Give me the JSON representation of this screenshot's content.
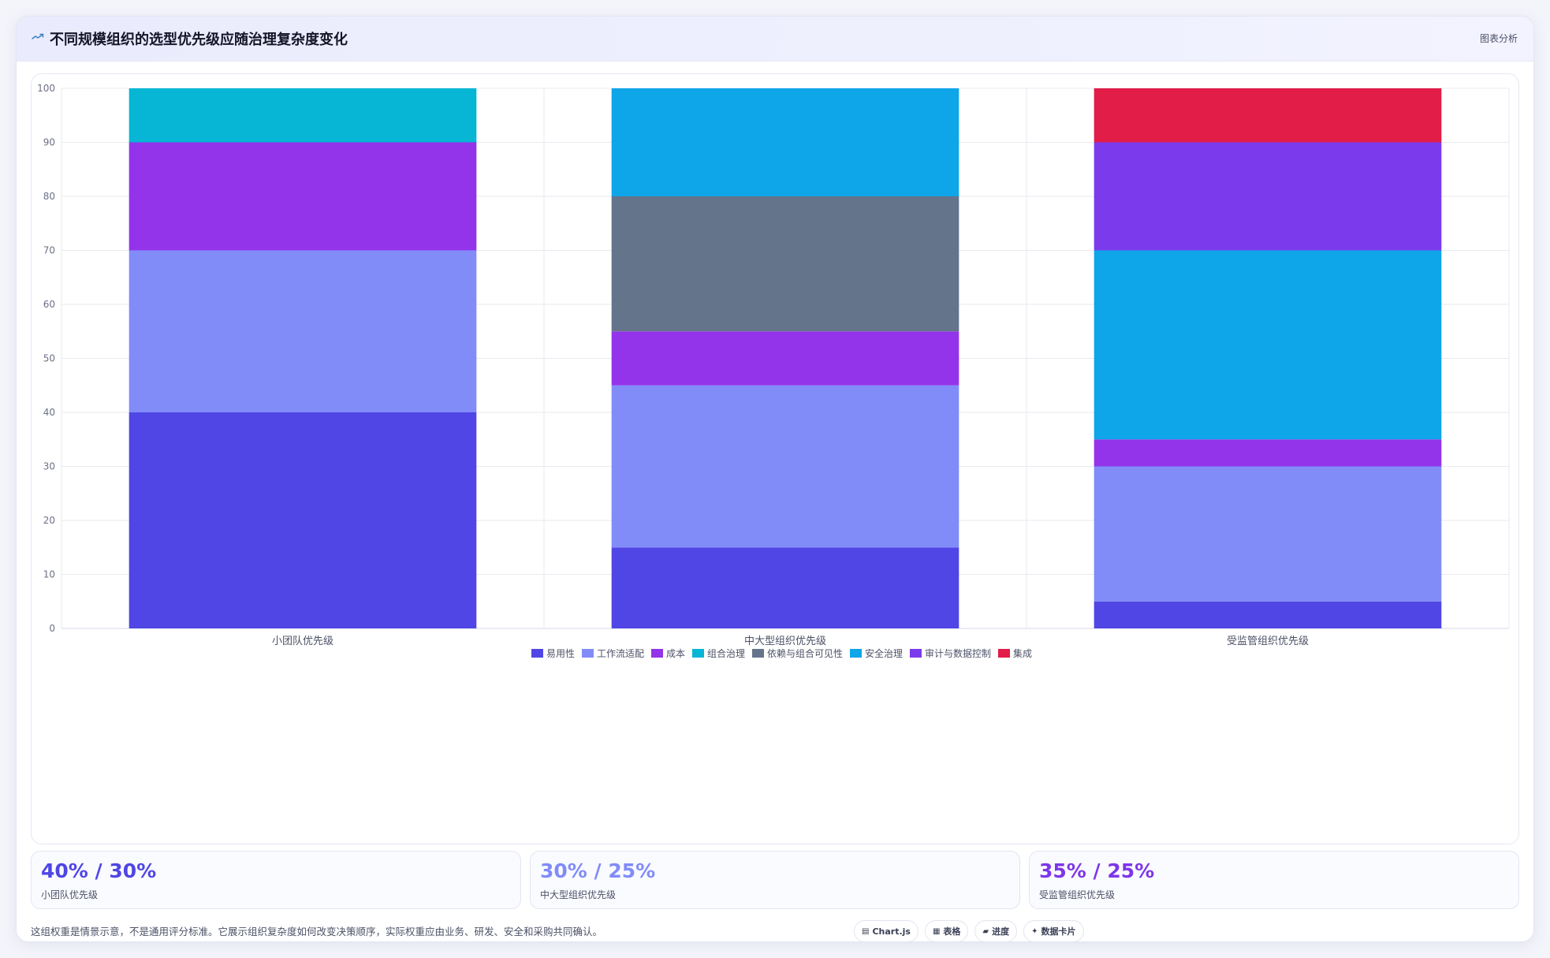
{
  "header": {
    "title": "不同规模组织的选型优先级应随治理复杂度变化",
    "action_label": "图表分析"
  },
  "chart_data": {
    "type": "bar",
    "stacked": true,
    "categories": [
      "小团队优先级",
      "中大型组织优先级",
      "受监管组织优先级"
    ],
    "ylim": [
      0,
      100
    ],
    "yticks": [
      0,
      10,
      20,
      30,
      40,
      50,
      60,
      70,
      80,
      90,
      100
    ],
    "grid": true,
    "legend_position": "bottom",
    "series": [
      {
        "name": "易用性",
        "color": "#4f46e5",
        "values": [
          40,
          15,
          5
        ]
      },
      {
        "name": "工作流适配",
        "color": "#818cf8",
        "values": [
          30,
          30,
          25
        ]
      },
      {
        "name": "成本",
        "color": "#9333ea",
        "values": [
          20,
          10,
          5
        ]
      },
      {
        "name": "组合治理",
        "color": "#06b6d4",
        "values": [
          10,
          0,
          0
        ]
      },
      {
        "name": "依赖与组合可见性",
        "color": "#64748b",
        "values": [
          0,
          25,
          0
        ]
      },
      {
        "name": "安全治理",
        "color": "#0ea5e9",
        "values": [
          0,
          20,
          35
        ]
      },
      {
        "name": "审计与数据控制",
        "color": "#7c3aed",
        "values": [
          0,
          0,
          20
        ]
      },
      {
        "name": "集成",
        "color": "#e11d48",
        "values": [
          0,
          0,
          10
        ]
      }
    ]
  },
  "stats": [
    {
      "value": "40% / 30%",
      "label": "小团队优先级",
      "color": "#4f46e5"
    },
    {
      "value": "30% / 25%",
      "label": "中大型组织优先级",
      "color": "#818cf8"
    },
    {
      "value": "35% / 25%",
      "label": "受监管组织优先级",
      "color": "#7e36e8"
    }
  ],
  "footnote": "这组权重是情景示意，不是通用评分标准。它展示组织复杂度如何改变决策顺序，实际权重应由业务、研发、安全和采购共同确认。",
  "chips": [
    {
      "icon": "▤",
      "label": "Chart.js"
    },
    {
      "icon": "▦",
      "label": "表格"
    },
    {
      "icon": "▰",
      "label": "进度"
    },
    {
      "icon": "✦",
      "label": "数据卡片"
    }
  ]
}
